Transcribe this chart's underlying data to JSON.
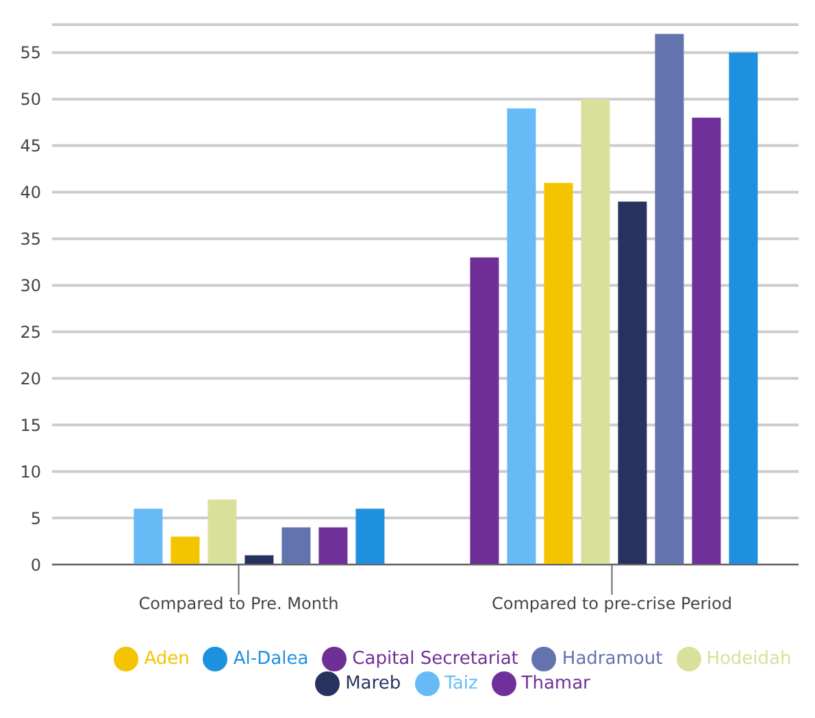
{
  "chart_data": {
    "type": "bar",
    "categories": [
      "Compared to Pre. Month",
      "Compared to pre-crise Period"
    ],
    "series": [
      {
        "name": "Capital Secretariat",
        "color": "#6f2f96",
        "values": [
          0,
          33
        ]
      },
      {
        "name": "Taiz",
        "color": "#66bbf7",
        "values": [
          6,
          49
        ]
      },
      {
        "name": "Aden",
        "color": "#f5c400",
        "values": [
          3,
          41
        ]
      },
      {
        "name": "Hodeidah",
        "color": "#d9e09c",
        "values": [
          7,
          50
        ]
      },
      {
        "name": "Mareb",
        "color": "#27325e",
        "values": [
          1,
          39
        ]
      },
      {
        "name": "Hadramout",
        "color": "#6373ae",
        "values": [
          4,
          57
        ]
      },
      {
        "name": "Thamar",
        "color": "#70309a",
        "values": [
          4,
          48
        ]
      },
      {
        "name": "Al-Dalea",
        "color": "#1e90e0",
        "values": [
          6,
          55
        ]
      }
    ],
    "ylim": [
      0,
      58
    ],
    "yticks": [
      0,
      5,
      10,
      15,
      20,
      25,
      30,
      35,
      40,
      45,
      50,
      55
    ],
    "grid": "y",
    "legend": "bottom"
  }
}
